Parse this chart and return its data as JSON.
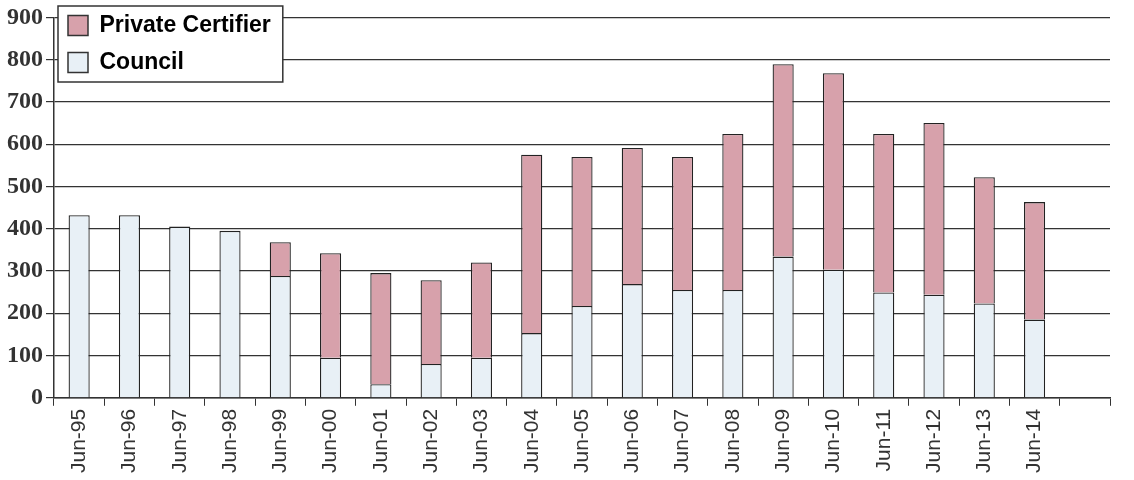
{
  "chart_data": {
    "type": "bar",
    "stacked": true,
    "categories": [
      "Jun-95",
      "Jun-96",
      "Jun-97",
      "Jun-98",
      "Jun-99",
      "Jun-00",
      "Jun-01",
      "Jun-02",
      "Jun-03",
      "Jun-04",
      "Jun-05",
      "Jun-06",
      "Jun-07",
      "Jun-08",
      "Jun-09",
      "Jun-10",
      "Jun-11",
      "Jun-12",
      "Jun-13",
      "Jun-14",
      null
    ],
    "series": [
      {
        "name": "Council",
        "color": "#e8f0f6",
        "values": [
          432,
          432,
          405,
          395,
          288,
          95,
          32,
          80,
          95,
          153,
          217,
          269,
          255,
          255,
          334,
          303,
          249,
          244,
          223,
          185,
          null
        ]
      },
      {
        "name": "Private Certifier",
        "color": "#d7a1ab",
        "values": [
          0,
          0,
          0,
          0,
          80,
          247,
          263,
          198,
          225,
          422,
          353,
          322,
          315,
          369,
          455,
          465,
          375,
          406,
          299,
          278,
          null
        ]
      }
    ],
    "ylim": [
      0,
      900
    ],
    "yticks": [
      0,
      100,
      200,
      300,
      400,
      500,
      600,
      700,
      800,
      900
    ],
    "grid": "y",
    "legend": "top left"
  }
}
